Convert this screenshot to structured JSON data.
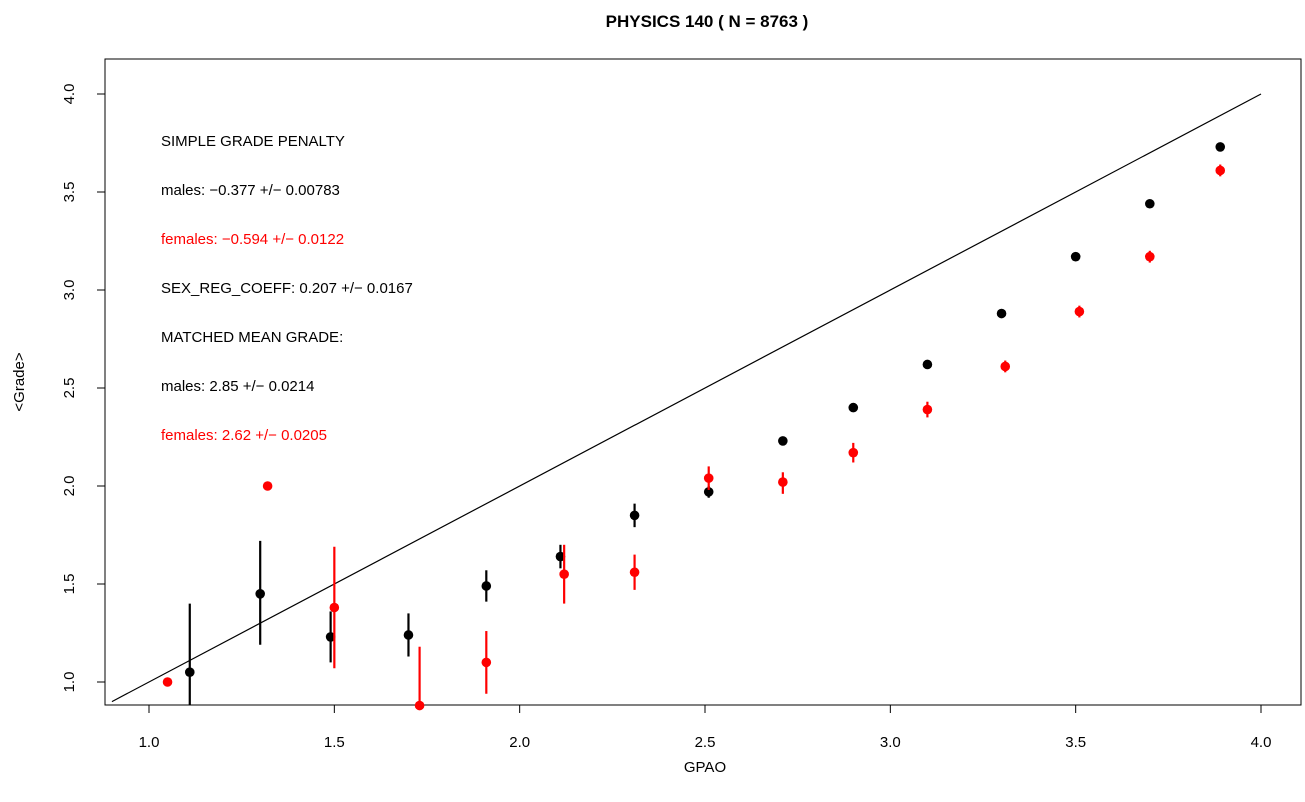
{
  "chart_data": {
    "type": "scatter",
    "title": "PHYSICS 140 ( N =  8763 )",
    "xlabel": "GPAO",
    "ylabel": "<Grade>",
    "xlim": [
      0.9,
      4.1
    ],
    "ylim": [
      0.88,
      4.1
    ],
    "xticks": [
      "1.0",
      "1.5",
      "2.0",
      "2.5",
      "3.0",
      "3.5",
      "4.0"
    ],
    "yticks": [
      "1.0",
      "1.5",
      "2.0",
      "2.5",
      "3.0",
      "3.5",
      "4.0"
    ],
    "reference_line": {
      "from": [
        0.9,
        0.9
      ],
      "to": [
        4.0,
        4.0
      ]
    },
    "colors": {
      "males": "#000000",
      "females": "#ff0000"
    },
    "series": [
      {
        "color": "#000000",
        "points": [
          {
            "x": 1.11,
            "y": 1.05,
            "lo": 0.88,
            "hi": 1.4
          },
          {
            "x": 1.3,
            "y": 1.45,
            "lo": 1.19,
            "hi": 1.72
          },
          {
            "x": 1.49,
            "y": 1.23,
            "lo": 1.1,
            "hi": 1.36
          },
          {
            "x": 1.7,
            "y": 1.24,
            "lo": 1.13,
            "hi": 1.35
          },
          {
            "x": 1.91,
            "y": 1.49,
            "lo": 1.41,
            "hi": 1.57
          },
          {
            "x": 2.11,
            "y": 1.64,
            "lo": 1.58,
            "hi": 1.7
          },
          {
            "x": 2.31,
            "y": 1.85,
            "lo": 1.79,
            "hi": 1.91
          },
          {
            "x": 2.51,
            "y": 1.97,
            "lo": 1.94,
            "hi": 2.0
          },
          {
            "x": 2.71,
            "y": 2.23,
            "lo": 2.21,
            "hi": 2.25
          },
          {
            "x": 2.9,
            "y": 2.4,
            "lo": 2.39,
            "hi": 2.41
          },
          {
            "x": 3.1,
            "y": 2.62,
            "lo": 2.61,
            "hi": 2.63
          },
          {
            "x": 3.3,
            "y": 2.88,
            "lo": 2.87,
            "hi": 2.89
          },
          {
            "x": 3.5,
            "y": 3.17,
            "lo": 3.16,
            "hi": 3.18
          },
          {
            "x": 3.7,
            "y": 3.44,
            "lo": 3.43,
            "hi": 3.45
          },
          {
            "x": 3.89,
            "y": 3.73,
            "lo": 3.72,
            "hi": 3.74
          }
        ]
      },
      {
        "color": "#ff0000",
        "points": [
          {
            "x": 1.05,
            "y": 1.0,
            "lo": 1.0,
            "hi": 1.0
          },
          {
            "x": 1.32,
            "y": 2.0,
            "lo": 2.0,
            "hi": 2.0
          },
          {
            "x": 1.5,
            "y": 1.38,
            "lo": 1.07,
            "hi": 1.69
          },
          {
            "x": 1.73,
            "y": 0.88,
            "lo": 0.88,
            "hi": 1.18
          },
          {
            "x": 1.91,
            "y": 1.1,
            "lo": 0.94,
            "hi": 1.26
          },
          {
            "x": 2.12,
            "y": 1.55,
            "lo": 1.4,
            "hi": 1.7
          },
          {
            "x": 2.31,
            "y": 1.56,
            "lo": 1.47,
            "hi": 1.65
          },
          {
            "x": 2.51,
            "y": 2.04,
            "lo": 1.98,
            "hi": 2.1
          },
          {
            "x": 2.71,
            "y": 2.02,
            "lo": 1.96,
            "hi": 2.07
          },
          {
            "x": 2.9,
            "y": 2.17,
            "lo": 2.12,
            "hi": 2.22
          },
          {
            "x": 3.1,
            "y": 2.39,
            "lo": 2.35,
            "hi": 2.43
          },
          {
            "x": 3.31,
            "y": 2.61,
            "lo": 2.58,
            "hi": 2.64
          },
          {
            "x": 3.51,
            "y": 2.89,
            "lo": 2.86,
            "hi": 2.92
          },
          {
            "x": 3.7,
            "y": 3.17,
            "lo": 3.14,
            "hi": 3.2
          },
          {
            "x": 3.89,
            "y": 3.61,
            "lo": 3.58,
            "hi": 3.64
          }
        ]
      }
    ],
    "annotations": [
      {
        "text": "SIMPLE GRADE PENALTY",
        "color": "#000000"
      },
      {
        "text": "males:  −0.377 +/− 0.00783",
        "color": "#000000"
      },
      {
        "text": "females:  −0.594 +/− 0.0122",
        "color": "#ff0000"
      },
      {
        "text": "SEX_REG_COEFF: 0.207 +/− 0.0167",
        "color": "#000000"
      },
      {
        "text": "MATCHED MEAN GRADE:",
        "color": "#000000"
      },
      {
        "text": "males:  2.85 +/− 0.0214",
        "color": "#000000"
      },
      {
        "text": "females:  2.62 +/− 0.0205",
        "color": "#ff0000"
      }
    ]
  }
}
